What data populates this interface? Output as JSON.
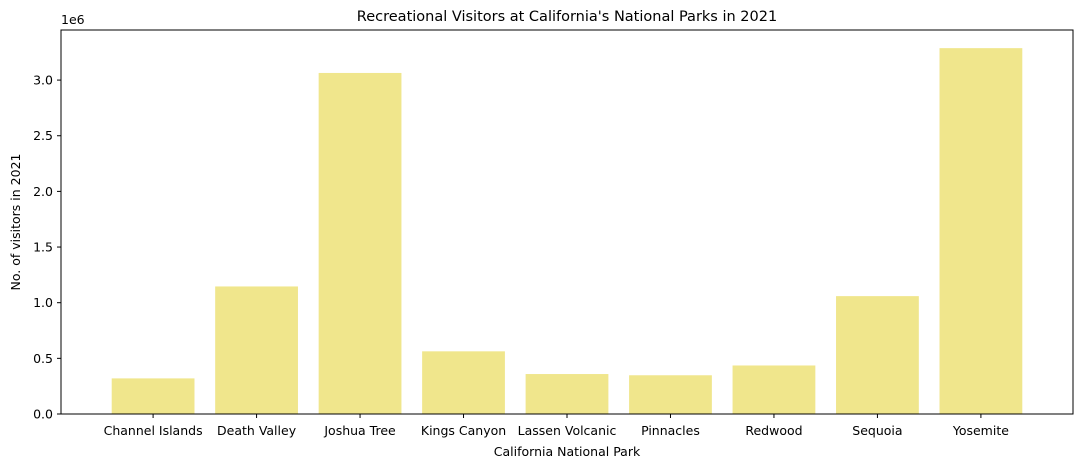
{
  "chart_data": {
    "type": "bar",
    "title": "Recreational Visitors at California's National Parks in 2021",
    "xlabel": "California National Park",
    "ylabel": "No. of visitors in 2021",
    "y_offset_label": "1e6",
    "categories": [
      "Channel Islands",
      "Death Valley",
      "Joshua Tree",
      "Kings Canyon",
      "Lassen Volcanic",
      "Pinnacles",
      "Redwood",
      "Sequoia",
      "Yosemite"
    ],
    "values": [
      320000,
      1146000,
      3064000,
      563000,
      359000,
      348000,
      436000,
      1059000,
      3287000
    ],
    "yticks": [
      0.0,
      0.5,
      1.0,
      1.5,
      2.0,
      2.5,
      3.0
    ],
    "ytick_labels": [
      "0.0",
      "0.5",
      "1.0",
      "1.5",
      "2.0",
      "2.5",
      "3.0"
    ],
    "ylim": [
      0,
      3450000
    ],
    "grid": false,
    "bar_color": "#f0e68c"
  }
}
